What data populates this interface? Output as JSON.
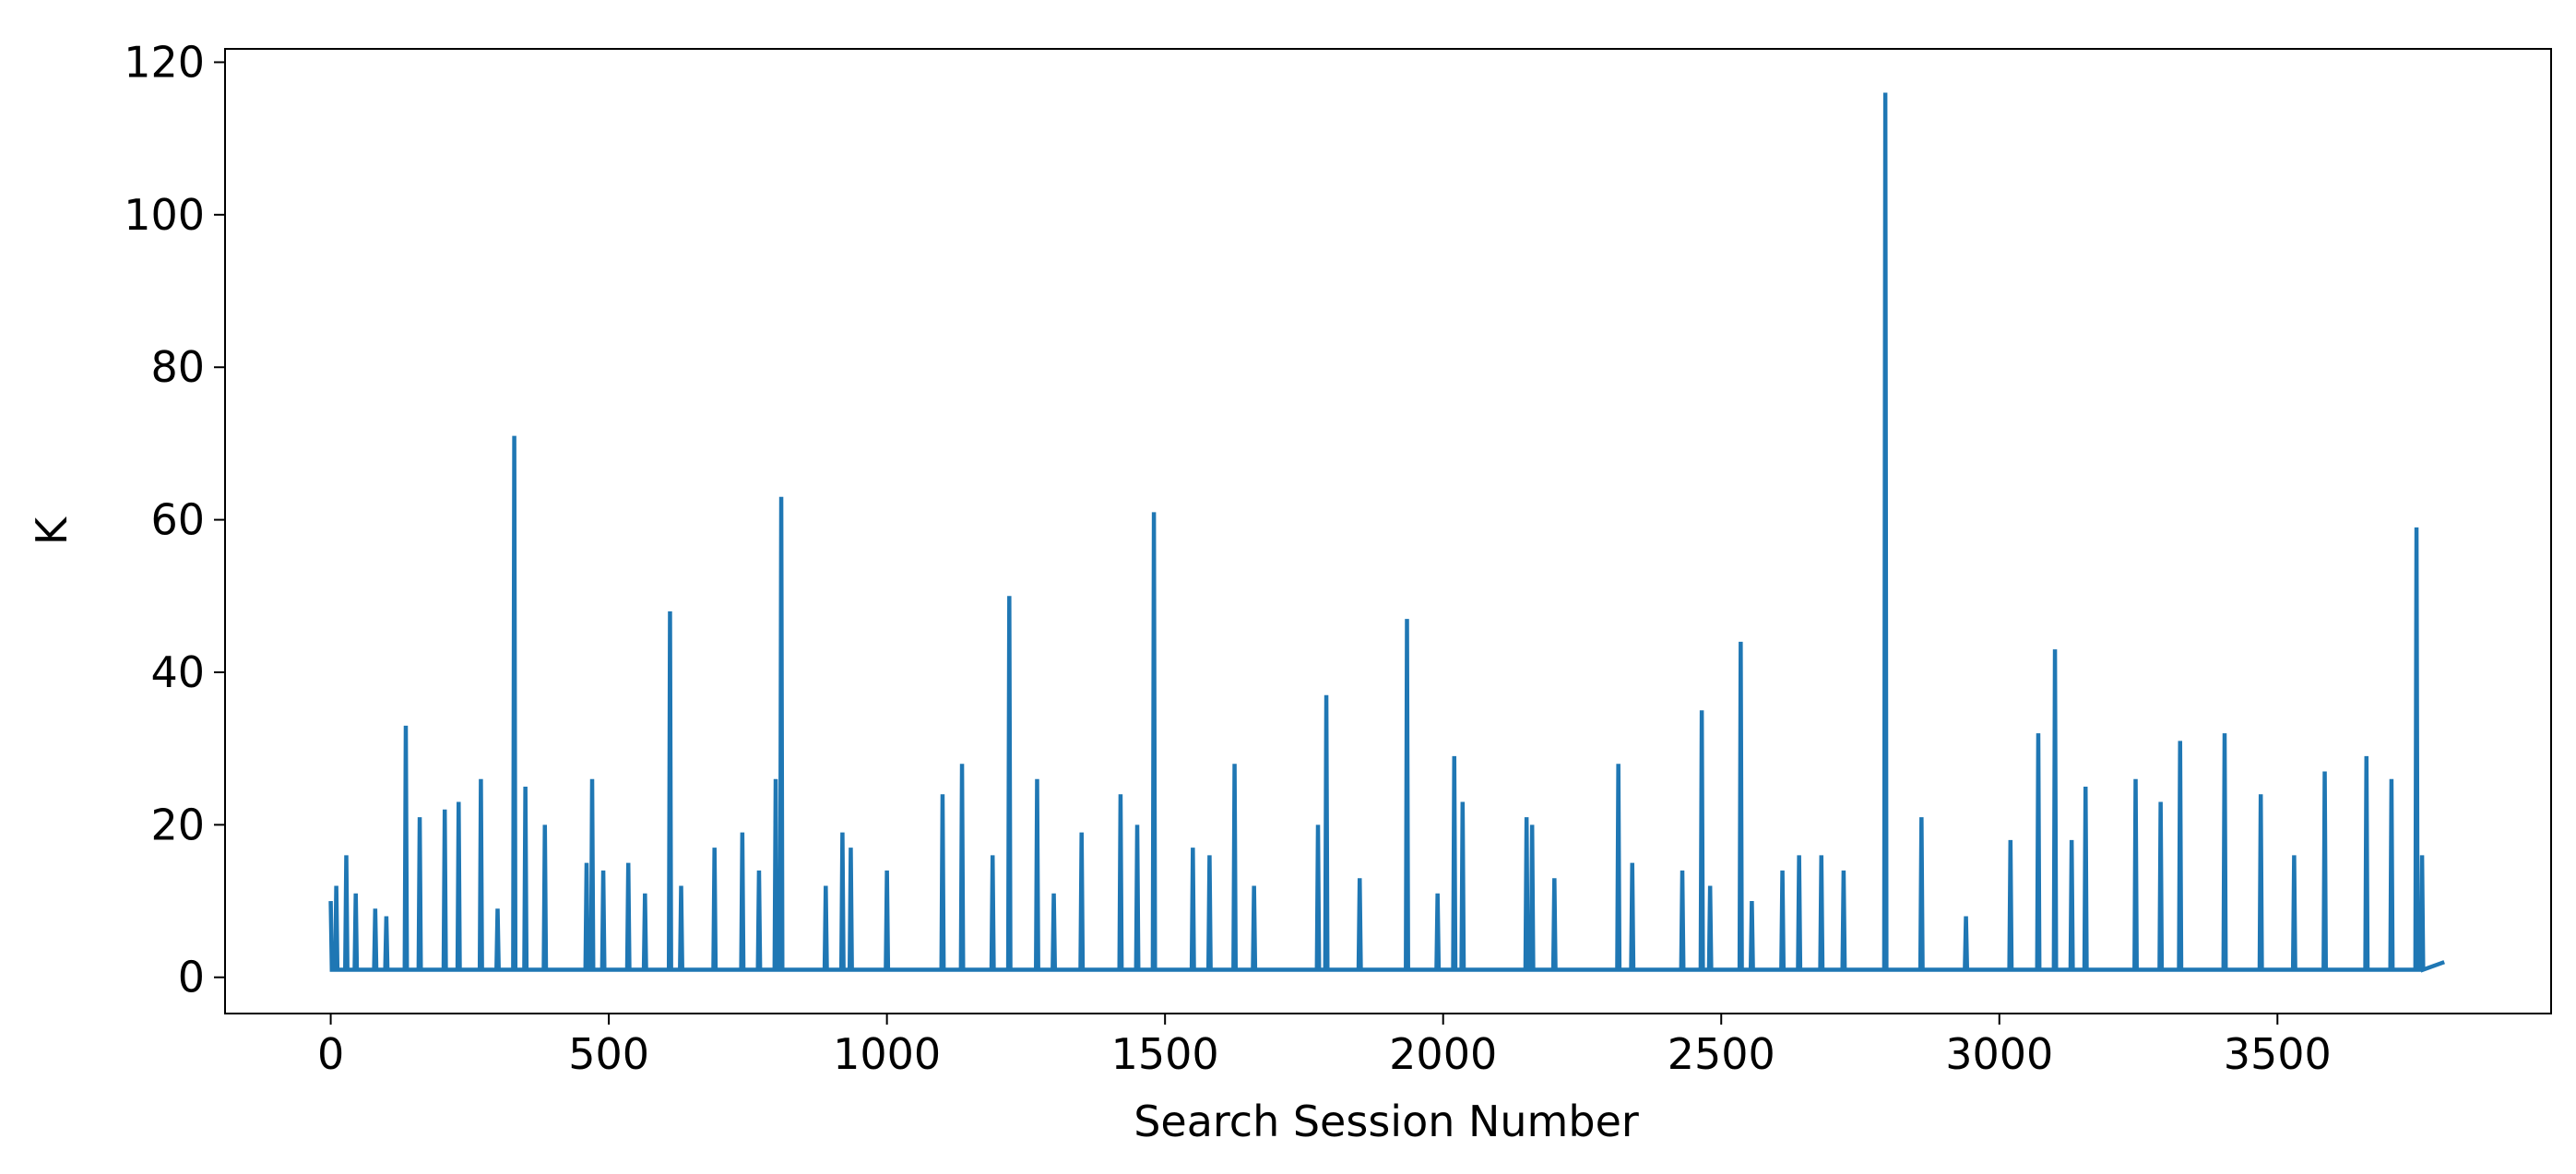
{
  "chart_data": {
    "type": "line",
    "xlabel": "Search Session Number",
    "ylabel": "K",
    "x": [
      0,
      2,
      8,
      10,
      12,
      26,
      28,
      30,
      43,
      45,
      47,
      78,
      80,
      82,
      98,
      100,
      102,
      133,
      135,
      137,
      158,
      160,
      162,
      203,
      205,
      207,
      228,
      230,
      232,
      268,
      270,
      272,
      298,
      300,
      302,
      328,
      330,
      332,
      348,
      350,
      352,
      383,
      385,
      387,
      458,
      460,
      462,
      468,
      470,
      472,
      488,
      490,
      492,
      533,
      535,
      537,
      563,
      565,
      567,
      608,
      610,
      612,
      628,
      630,
      632,
      688,
      690,
      692,
      738,
      740,
      742,
      768,
      770,
      772,
      798,
      800,
      802,
      808,
      810,
      812,
      888,
      890,
      892,
      918,
      920,
      922,
      933,
      935,
      937,
      998,
      1000,
      1002,
      1098,
      1100,
      1102,
      1133,
      1135,
      1137,
      1188,
      1190,
      1192,
      1218,
      1220,
      1222,
      1268,
      1270,
      1272,
      1298,
      1300,
      1302,
      1348,
      1350,
      1352,
      1418,
      1420,
      1422,
      1448,
      1450,
      1452,
      1478,
      1480,
      1482,
      1548,
      1550,
      1552,
      1578,
      1580,
      1582,
      1623,
      1625,
      1627,
      1658,
      1660,
      1662,
      1773,
      1775,
      1777,
      1788,
      1790,
      1792,
      1848,
      1850,
      1852,
      1933,
      1935,
      1937,
      1988,
      1990,
      1992,
      2018,
      2020,
      2022,
      2033,
      2035,
      2037,
      2148,
      2150,
      2152,
      2158,
      2160,
      2162,
      2198,
      2200,
      2202,
      2313,
      2315,
      2317,
      2338,
      2340,
      2342,
      2428,
      2430,
      2432,
      2463,
      2465,
      2467,
      2478,
      2480,
      2482,
      2533,
      2535,
      2537,
      2553,
      2555,
      2557,
      2608,
      2610,
      2612,
      2638,
      2640,
      2642,
      2678,
      2680,
      2682,
      2718,
      2720,
      2722,
      2793,
      2795,
      2797,
      2858,
      2860,
      2862,
      2938,
      2940,
      2942,
      3018,
      3020,
      3022,
      3068,
      3070,
      3072,
      3098,
      3100,
      3102,
      3128,
      3130,
      3132,
      3153,
      3155,
      3157,
      3243,
      3245,
      3247,
      3288,
      3290,
      3292,
      3323,
      3325,
      3327,
      3403,
      3405,
      3407,
      3468,
      3470,
      3472,
      3528,
      3530,
      3532,
      3583,
      3585,
      3587,
      3658,
      3660,
      3662,
      3703,
      3705,
      3707,
      3748,
      3750,
      3752,
      3758,
      3760,
      3762,
      3800
    ],
    "series": [
      {
        "color": "#1f77b4",
        "values": [
          10,
          1,
          1,
          12,
          1,
          1,
          16,
          1,
          1,
          11,
          1,
          1,
          9,
          1,
          1,
          8,
          1,
          1,
          33,
          1,
          1,
          21,
          1,
          1,
          22,
          1,
          1,
          23,
          1,
          1,
          26,
          1,
          1,
          9,
          1,
          1,
          71,
          1,
          1,
          25,
          1,
          1,
          20,
          1,
          1,
          15,
          1,
          1,
          26,
          1,
          1,
          14,
          1,
          1,
          15,
          1,
          1,
          11,
          1,
          1,
          48,
          1,
          1,
          12,
          1,
          1,
          17,
          1,
          1,
          19,
          1,
          1,
          14,
          1,
          1,
          26,
          1,
          1,
          63,
          1,
          1,
          12,
          1,
          1,
          19,
          1,
          1,
          17,
          1,
          1,
          14,
          1,
          1,
          24,
          1,
          1,
          28,
          1,
          1,
          16,
          1,
          1,
          50,
          1,
          1,
          26,
          1,
          1,
          11,
          1,
          1,
          19,
          1,
          1,
          24,
          1,
          1,
          20,
          1,
          1,
          61,
          1,
          1,
          17,
          1,
          1,
          16,
          1,
          1,
          28,
          1,
          1,
          12,
          1,
          1,
          20,
          1,
          1,
          37,
          1,
          1,
          13,
          1,
          1,
          47,
          1,
          1,
          11,
          1,
          1,
          29,
          1,
          1,
          23,
          1,
          1,
          21,
          1,
          1,
          20,
          1,
          1,
          13,
          1,
          1,
          28,
          1,
          1,
          15,
          1,
          1,
          14,
          1,
          1,
          35,
          1,
          1,
          12,
          1,
          1,
          44,
          1,
          1,
          10,
          1,
          1,
          14,
          1,
          1,
          16,
          1,
          1,
          16,
          1,
          1,
          14,
          1,
          1,
          116,
          1,
          1,
          21,
          1,
          1,
          8,
          1,
          1,
          18,
          1,
          1,
          32,
          1,
          1,
          43,
          1,
          1,
          18,
          1,
          1,
          25,
          1,
          1,
          26,
          1,
          1,
          23,
          1,
          1,
          31,
          1,
          1,
          32,
          1,
          1,
          24,
          1,
          1,
          16,
          1,
          1,
          27,
          1,
          1,
          29,
          1,
          1,
          26,
          1,
          1,
          59,
          1,
          1,
          16,
          1,
          2
        ]
      }
    ],
    "xlim": [
      -190,
      3992
    ],
    "ylim": [
      -4.75,
      121.75
    ],
    "xticks": [
      0,
      500,
      1000,
      1500,
      2000,
      2500,
      3000,
      3500
    ],
    "yticks": [
      0,
      20,
      40,
      60,
      80,
      100,
      120
    ]
  }
}
